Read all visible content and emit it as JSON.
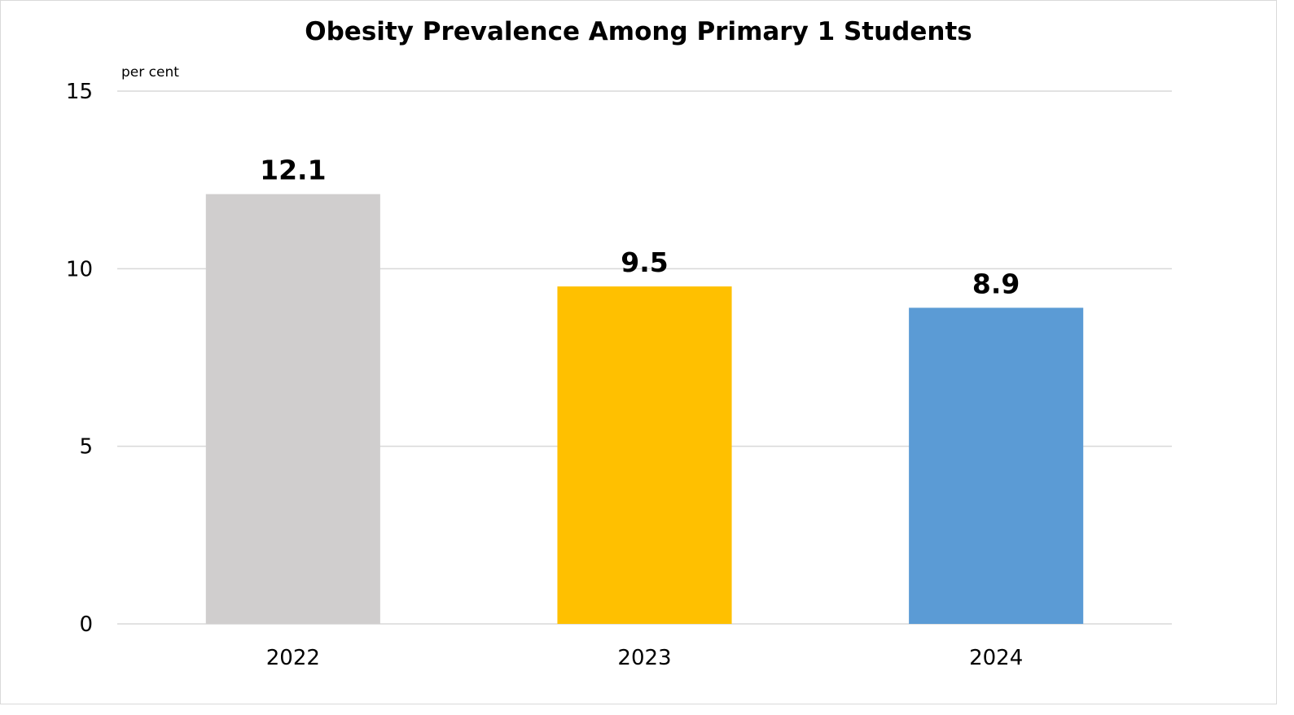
{
  "chart_data": {
    "type": "bar",
    "title": "Obesity Prevalence Among Primary 1 Students",
    "ylabel": "per cent",
    "xlabel": "",
    "categories": [
      "2022",
      "2023",
      "2024"
    ],
    "values": [
      12.1,
      9.5,
      8.9
    ],
    "value_labels": [
      "12.1",
      "9.5",
      "8.9"
    ],
    "bar_colors": [
      "#d0cece",
      "#ffc000",
      "#5b9bd5"
    ],
    "ylim": [
      0,
      15
    ],
    "yticks": [
      0,
      5,
      10,
      15
    ],
    "ytick_labels": [
      "0",
      "5",
      "10",
      "15"
    ],
    "grid": true,
    "legend": "none"
  }
}
